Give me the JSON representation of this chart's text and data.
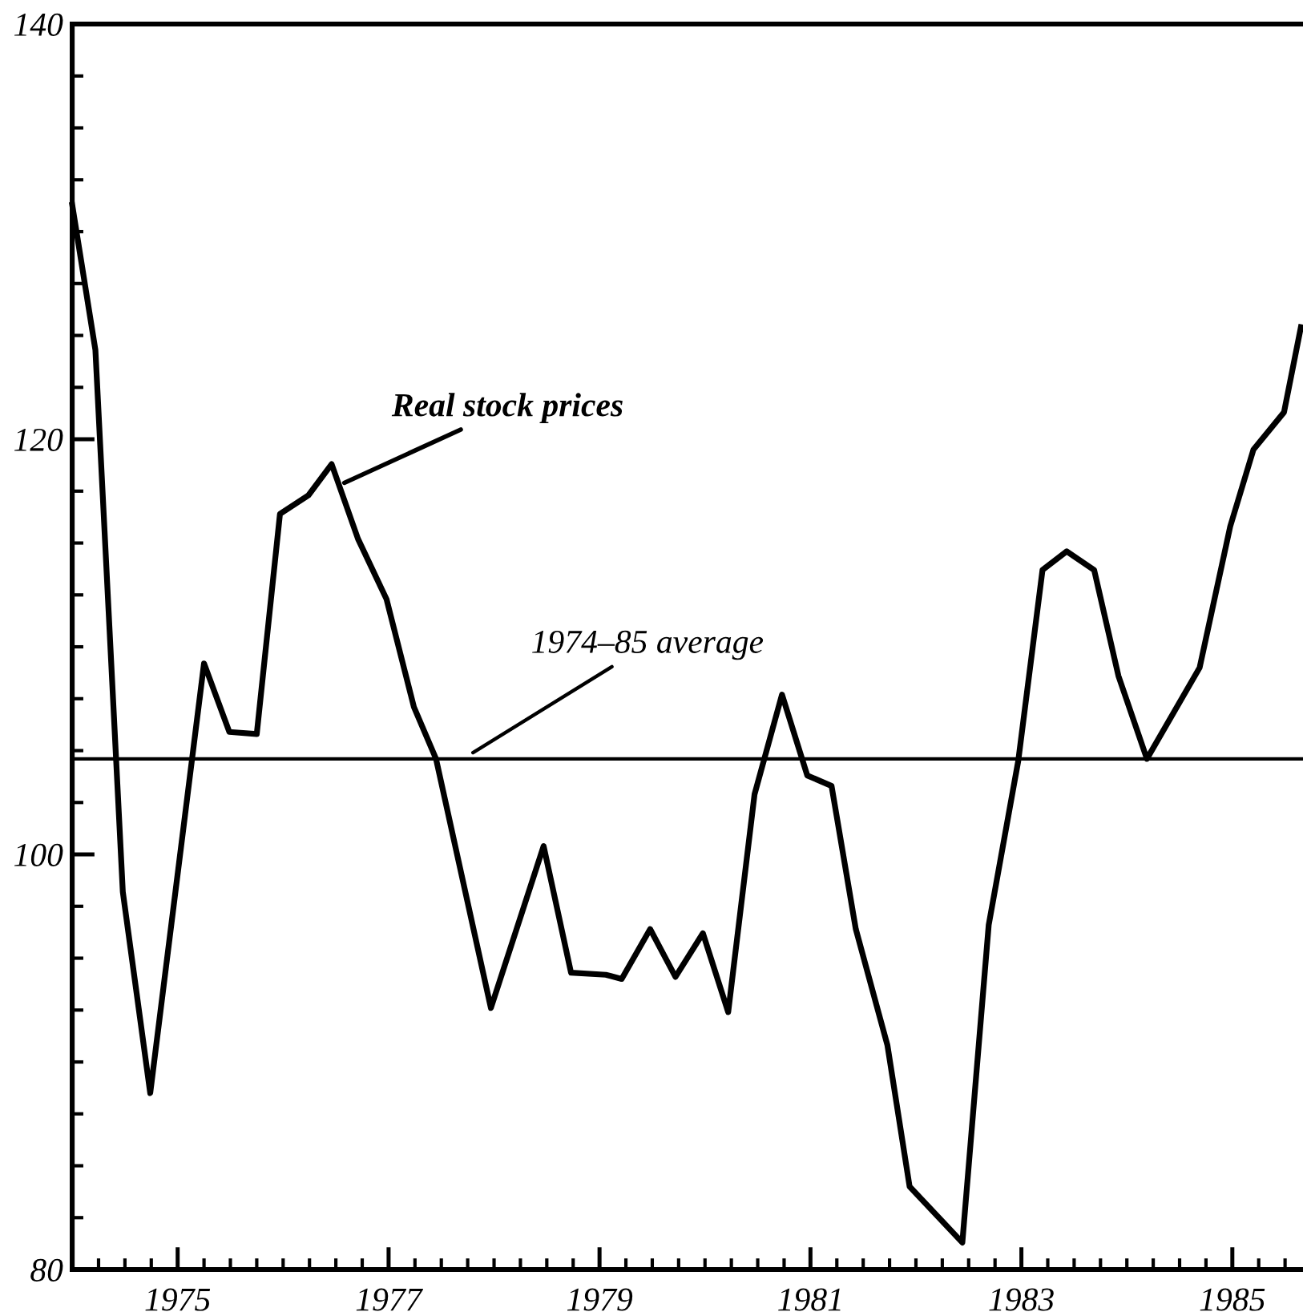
{
  "chart_data": {
    "type": "line",
    "x": [
      1974.0,
      1974.22,
      1974.48,
      1974.74,
      1975.25,
      1975.49,
      1975.75,
      1975.97,
      1976.24,
      1976.46,
      1976.71,
      1976.98,
      1977.24,
      1977.45,
      1977.97,
      1978.47,
      1978.73,
      1979.06,
      1979.21,
      1979.48,
      1979.72,
      1979.98,
      1980.22,
      1980.47,
      1980.73,
      1980.97,
      1981.2,
      1981.43,
      1981.73,
      1981.94,
      1982.44,
      1982.69,
      1982.97,
      1983.2,
      1983.43,
      1983.69,
      1983.92,
      1984.19,
      1984.69,
      1984.98,
      1985.2,
      1985.49,
      1985.65
    ],
    "series": [
      {
        "name": "Real stock prices",
        "color": "#000000",
        "values": [
          131.3,
          124.3,
          98.2,
          88.5,
          109.2,
          105.9,
          105.8,
          116.4,
          117.3,
          118.8,
          115.2,
          112.3,
          107.1,
          104.6,
          92.6,
          100.4,
          94.3,
          94.2,
          94.0,
          96.4,
          94.1,
          96.2,
          92.4,
          102.9,
          107.7,
          103.8,
          103.3,
          96.4,
          90.8,
          84.0,
          81.3,
          96.6,
          104.5,
          113.7,
          114.6,
          113.7,
          108.6,
          104.6,
          109.0,
          115.8,
          119.5,
          121.3,
          125.4
        ]
      }
    ],
    "xlim": [
      1974,
      1985.67
    ],
    "xticks": [
      {
        "value": 1974.25,
        "label": null
      },
      {
        "value": 1974.5,
        "label": null
      },
      {
        "value": 1974.75,
        "label": null
      },
      1975,
      {
        "value": 1975.25,
        "label": null
      },
      {
        "value": 1975.5,
        "label": null
      },
      {
        "value": 1975.75,
        "label": null
      },
      {
        "value": 1976,
        "label": null
      },
      {
        "value": 1976.25,
        "label": null
      },
      {
        "value": 1976.5,
        "label": null
      },
      {
        "value": 1976.75,
        "label": null
      },
      1977,
      {
        "value": 1977.25,
        "label": null
      },
      {
        "value": 1977.5,
        "label": null
      },
      {
        "value": 1977.75,
        "label": null
      },
      {
        "value": 1978,
        "label": null
      },
      {
        "value": 1978.25,
        "label": null
      },
      {
        "value": 1978.5,
        "label": null
      },
      {
        "value": 1978.75,
        "label": null
      },
      1979,
      {
        "value": 1979.25,
        "label": null
      },
      {
        "value": 1979.5,
        "label": null
      },
      {
        "value": 1979.75,
        "label": null
      },
      {
        "value": 1980,
        "label": null
      },
      {
        "value": 1980.25,
        "label": null
      },
      {
        "value": 1980.5,
        "label": null
      },
      {
        "value": 1980.75,
        "label": null
      },
      1981,
      {
        "value": 1981.25,
        "label": null
      },
      {
        "value": 1981.5,
        "label": null
      },
      {
        "value": 1981.75,
        "label": null
      },
      {
        "value": 1982,
        "label": null
      },
      {
        "value": 1982.25,
        "label": null
      },
      {
        "value": 1982.5,
        "label": null
      },
      {
        "value": 1982.75,
        "label": null
      },
      1983,
      {
        "value": 1983.25,
        "label": null
      },
      {
        "value": 1983.5,
        "label": null
      },
      {
        "value": 1983.75,
        "label": null
      },
      {
        "value": 1984,
        "label": null
      },
      {
        "value": 1984.25,
        "label": null
      },
      {
        "value": 1984.5,
        "label": null
      },
      {
        "value": 1984.75,
        "label": null
      },
      1985,
      {
        "value": 1985.25,
        "label": null
      },
      {
        "value": 1985.5,
        "label": null
      }
    ],
    "ylim": [
      80,
      140
    ],
    "yticks": [
      80,
      {
        "value": 82.5,
        "label": null
      },
      {
        "value": 85,
        "label": null
      },
      {
        "value": 87.5,
        "label": null
      },
      {
        "value": 90,
        "label": null
      },
      {
        "value": 92.5,
        "label": null
      },
      {
        "value": 95,
        "label": null
      },
      {
        "value": 97.5,
        "label": null
      },
      100,
      {
        "value": 102.5,
        "label": null
      },
      {
        "value": 105,
        "label": null
      },
      {
        "value": 107.5,
        "label": null
      },
      {
        "value": 110,
        "label": null
      },
      {
        "value": 112.5,
        "label": null
      },
      {
        "value": 115,
        "label": null
      },
      {
        "value": 117.5,
        "label": null
      },
      120,
      {
        "value": 122.5,
        "label": null
      },
      {
        "value": 125,
        "label": null
      },
      {
        "value": 127.5,
        "label": null
      },
      {
        "value": 130,
        "label": null
      },
      {
        "value": 132.5,
        "label": null
      },
      {
        "value": 135,
        "label": null
      },
      {
        "value": 137.5,
        "label": null
      },
      140
    ],
    "ref_lines": [
      {
        "axis": "y",
        "value": 104.6,
        "label": "1974–85 average",
        "color": "#000000"
      }
    ],
    "grid": false,
    "legend": false,
    "marker": "none",
    "line_style": "solid"
  }
}
